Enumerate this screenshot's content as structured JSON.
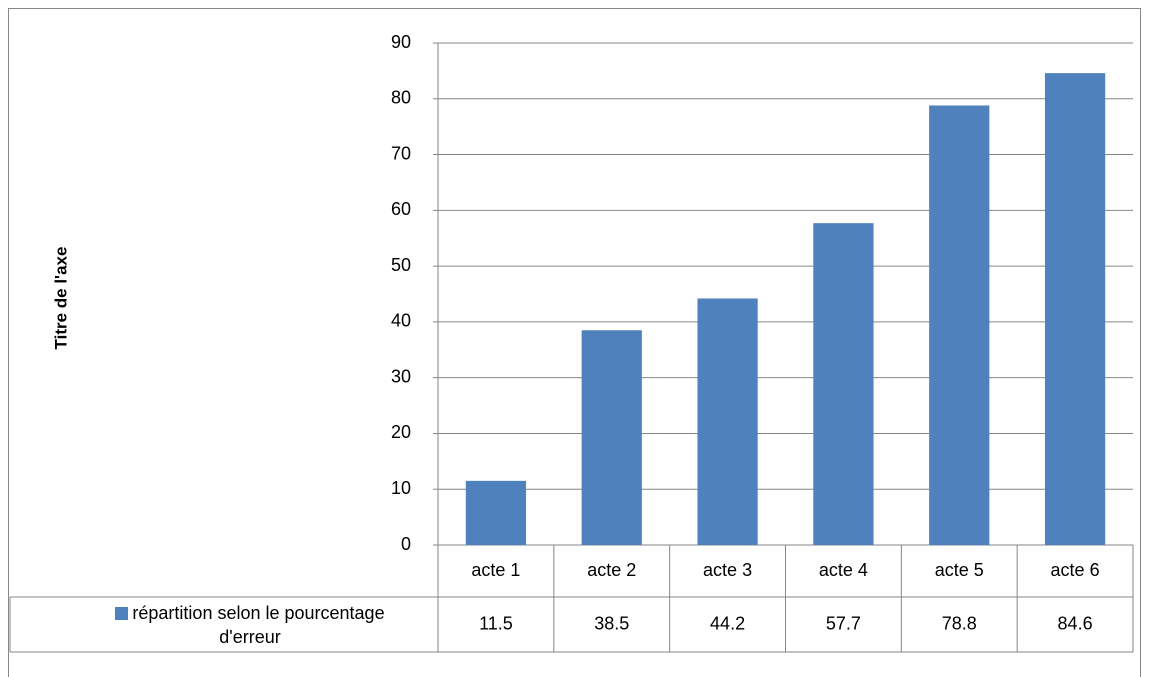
{
  "chart_data": {
    "type": "bar",
    "y_axis_label": "Titre de l'axe",
    "categories": [
      "acte 1",
      "acte 2",
      "acte 3",
      "acte 4",
      "acte 5",
      "acte 6"
    ],
    "series": [
      {
        "name": "répartition selon le pourcentage d'erreur",
        "color": "#4f81bd",
        "values": [
          11.5,
          38.5,
          44.2,
          57.7,
          78.8,
          84.6
        ]
      }
    ],
    "ylim": [
      0,
      90
    ],
    "yticks": [
      0,
      10,
      20,
      30,
      40,
      50,
      60,
      70,
      80,
      90
    ],
    "grid": true,
    "data_table": true
  }
}
